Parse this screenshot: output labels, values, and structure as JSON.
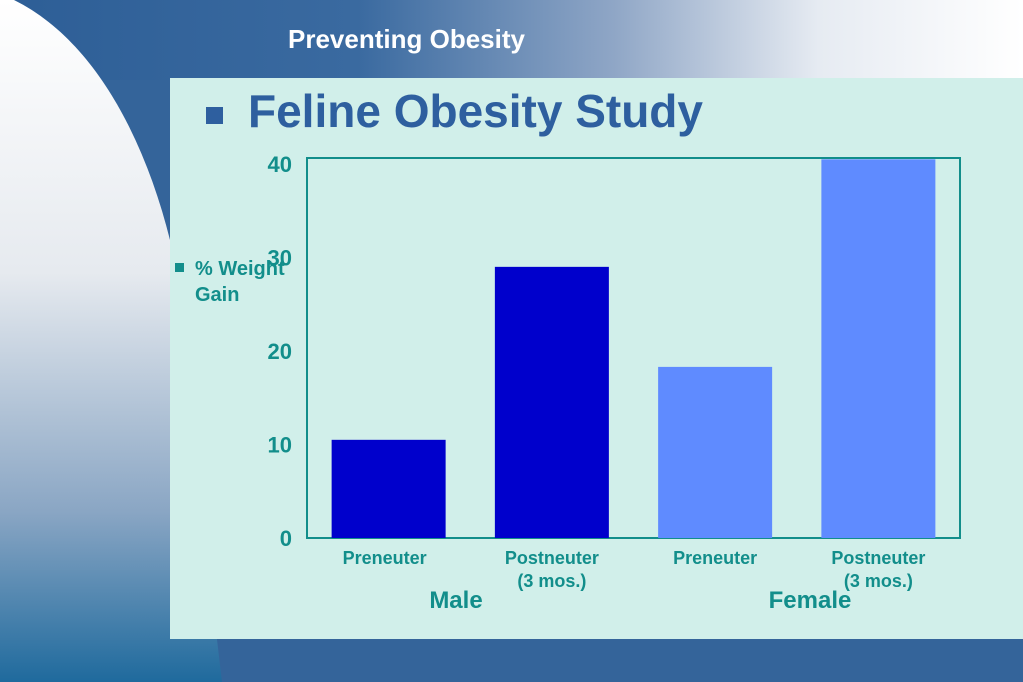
{
  "header": {
    "title": "Preventing Obesity"
  },
  "slide": {
    "title": "Feline Obesity Study"
  },
  "colors": {
    "male": "#0000cc",
    "female": "#5f8bff",
    "axis": "#128e8b",
    "title": "#2e5f9f",
    "panel": "#d1efea"
  },
  "chart_data": {
    "type": "bar",
    "title": "",
    "ylabel": "% Weight Gain",
    "xlabel": "",
    "ylim": [
      0,
      40
    ],
    "yticks": [
      0,
      10,
      20,
      30,
      40
    ],
    "grid": false,
    "legend": "none",
    "categories": [
      {
        "lines": [
          "Preneuter"
        ],
        "group": "Male",
        "value": 10.5,
        "color": "#0000cc"
      },
      {
        "lines": [
          "Postneuter",
          "(3 mos.)"
        ],
        "group": "Male",
        "value": 29,
        "color": "#0000cc"
      },
      {
        "lines": [
          "Preneuter"
        ],
        "group": "Female",
        "value": 18.3,
        "color": "#5f8bff"
      },
      {
        "lines": [
          "Postneuter",
          "(3 mos.)"
        ],
        "group": "Female",
        "value": 40.5,
        "color": "#5f8bff"
      }
    ],
    "groups": [
      "Male",
      "Female"
    ]
  }
}
